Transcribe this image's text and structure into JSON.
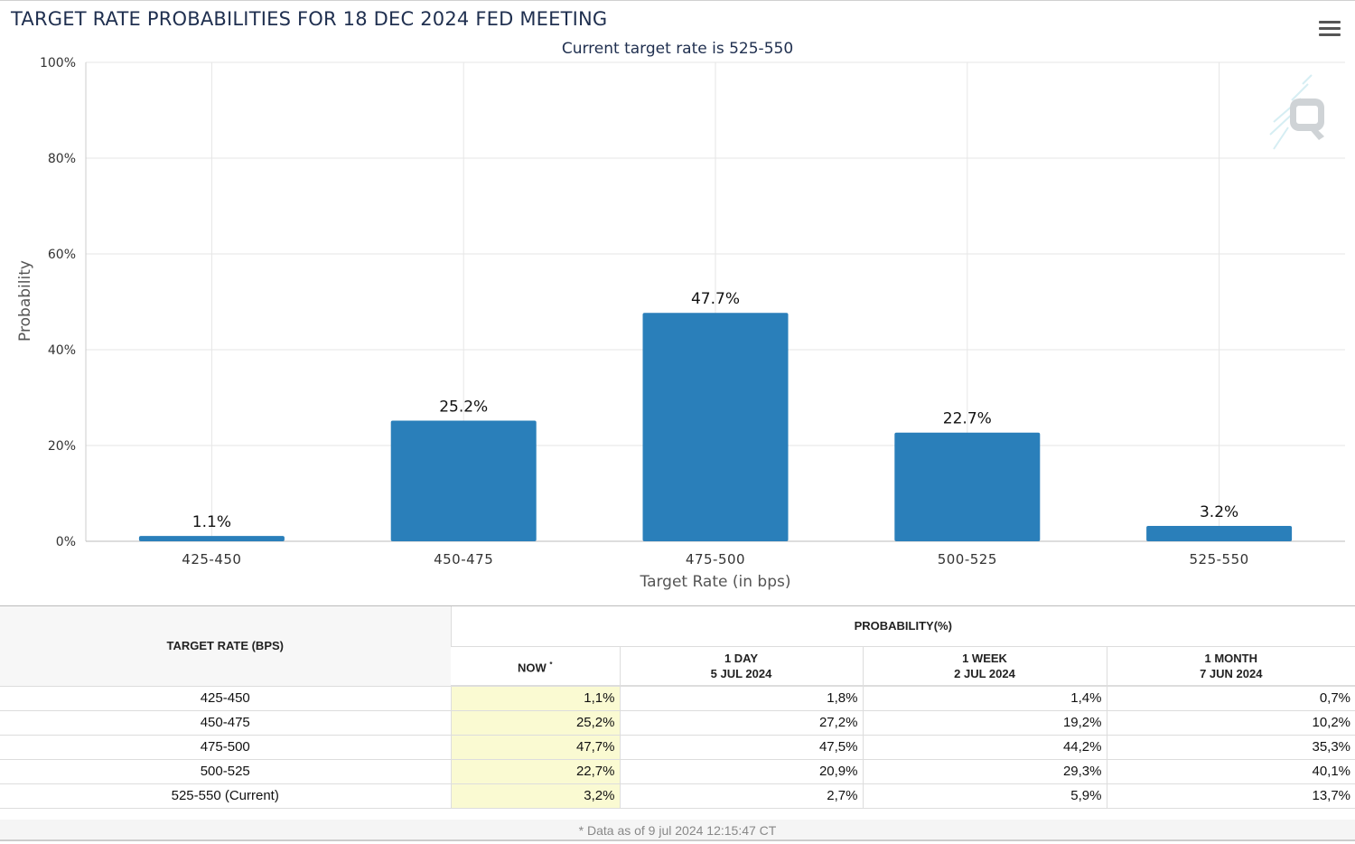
{
  "header": {
    "title": "TARGET RATE PROBABILITIES FOR 18 DEC 2024 FED MEETING",
    "subtitle": "Current target rate is 525-550"
  },
  "colors": {
    "bar": "#2a7fba",
    "now_column": "#fafad2",
    "title": "#1f2f4f"
  },
  "icons": {
    "menu": "hamburger-menu-icon",
    "watermark": "quikstrike-q-logo"
  },
  "chart_data": {
    "type": "bar",
    "categories": [
      "425-450",
      "450-475",
      "475-500",
      "500-525",
      "525-550"
    ],
    "values": [
      1.1,
      25.2,
      47.7,
      22.7,
      3.2
    ],
    "data_labels": [
      "1.1%",
      "25.2%",
      "47.7%",
      "22.7%",
      "3.2%"
    ],
    "xlabel": "Target Rate (in bps)",
    "ylabel": "Probability",
    "ylim": [
      0,
      100
    ],
    "yticks": [
      0,
      20,
      40,
      60,
      80,
      100
    ],
    "ytick_labels": [
      "0%",
      "20%",
      "40%",
      "60%",
      "80%",
      "100%"
    ],
    "grid": true,
    "legend": "none"
  },
  "table": {
    "rate_header": "TARGET RATE (BPS)",
    "prob_header": "PROBABILITY(%)",
    "columns": [
      {
        "line1": "NOW",
        "line2": "",
        "marker": "*"
      },
      {
        "line1": "1 DAY",
        "line2": "5 JUL 2024",
        "marker": ""
      },
      {
        "line1": "1 WEEK",
        "line2": "2 JUL 2024",
        "marker": ""
      },
      {
        "line1": "1 MONTH",
        "line2": "7 JUN 2024",
        "marker": ""
      }
    ],
    "rows": [
      {
        "rate": "425-450",
        "values": [
          "1,1%",
          "1,8%",
          "1,4%",
          "0,7%"
        ]
      },
      {
        "rate": "450-475",
        "values": [
          "25,2%",
          "27,2%",
          "19,2%",
          "10,2%"
        ]
      },
      {
        "rate": "475-500",
        "values": [
          "47,7%",
          "47,5%",
          "44,2%",
          "35,3%"
        ]
      },
      {
        "rate": "500-525",
        "values": [
          "22,7%",
          "20,9%",
          "29,3%",
          "40,1%"
        ]
      },
      {
        "rate": "525-550 (Current)",
        "values": [
          "3,2%",
          "2,7%",
          "5,9%",
          "13,7%"
        ]
      }
    ],
    "footnote": "* Data as of 9 jul 2024 12:15:47 CT"
  }
}
